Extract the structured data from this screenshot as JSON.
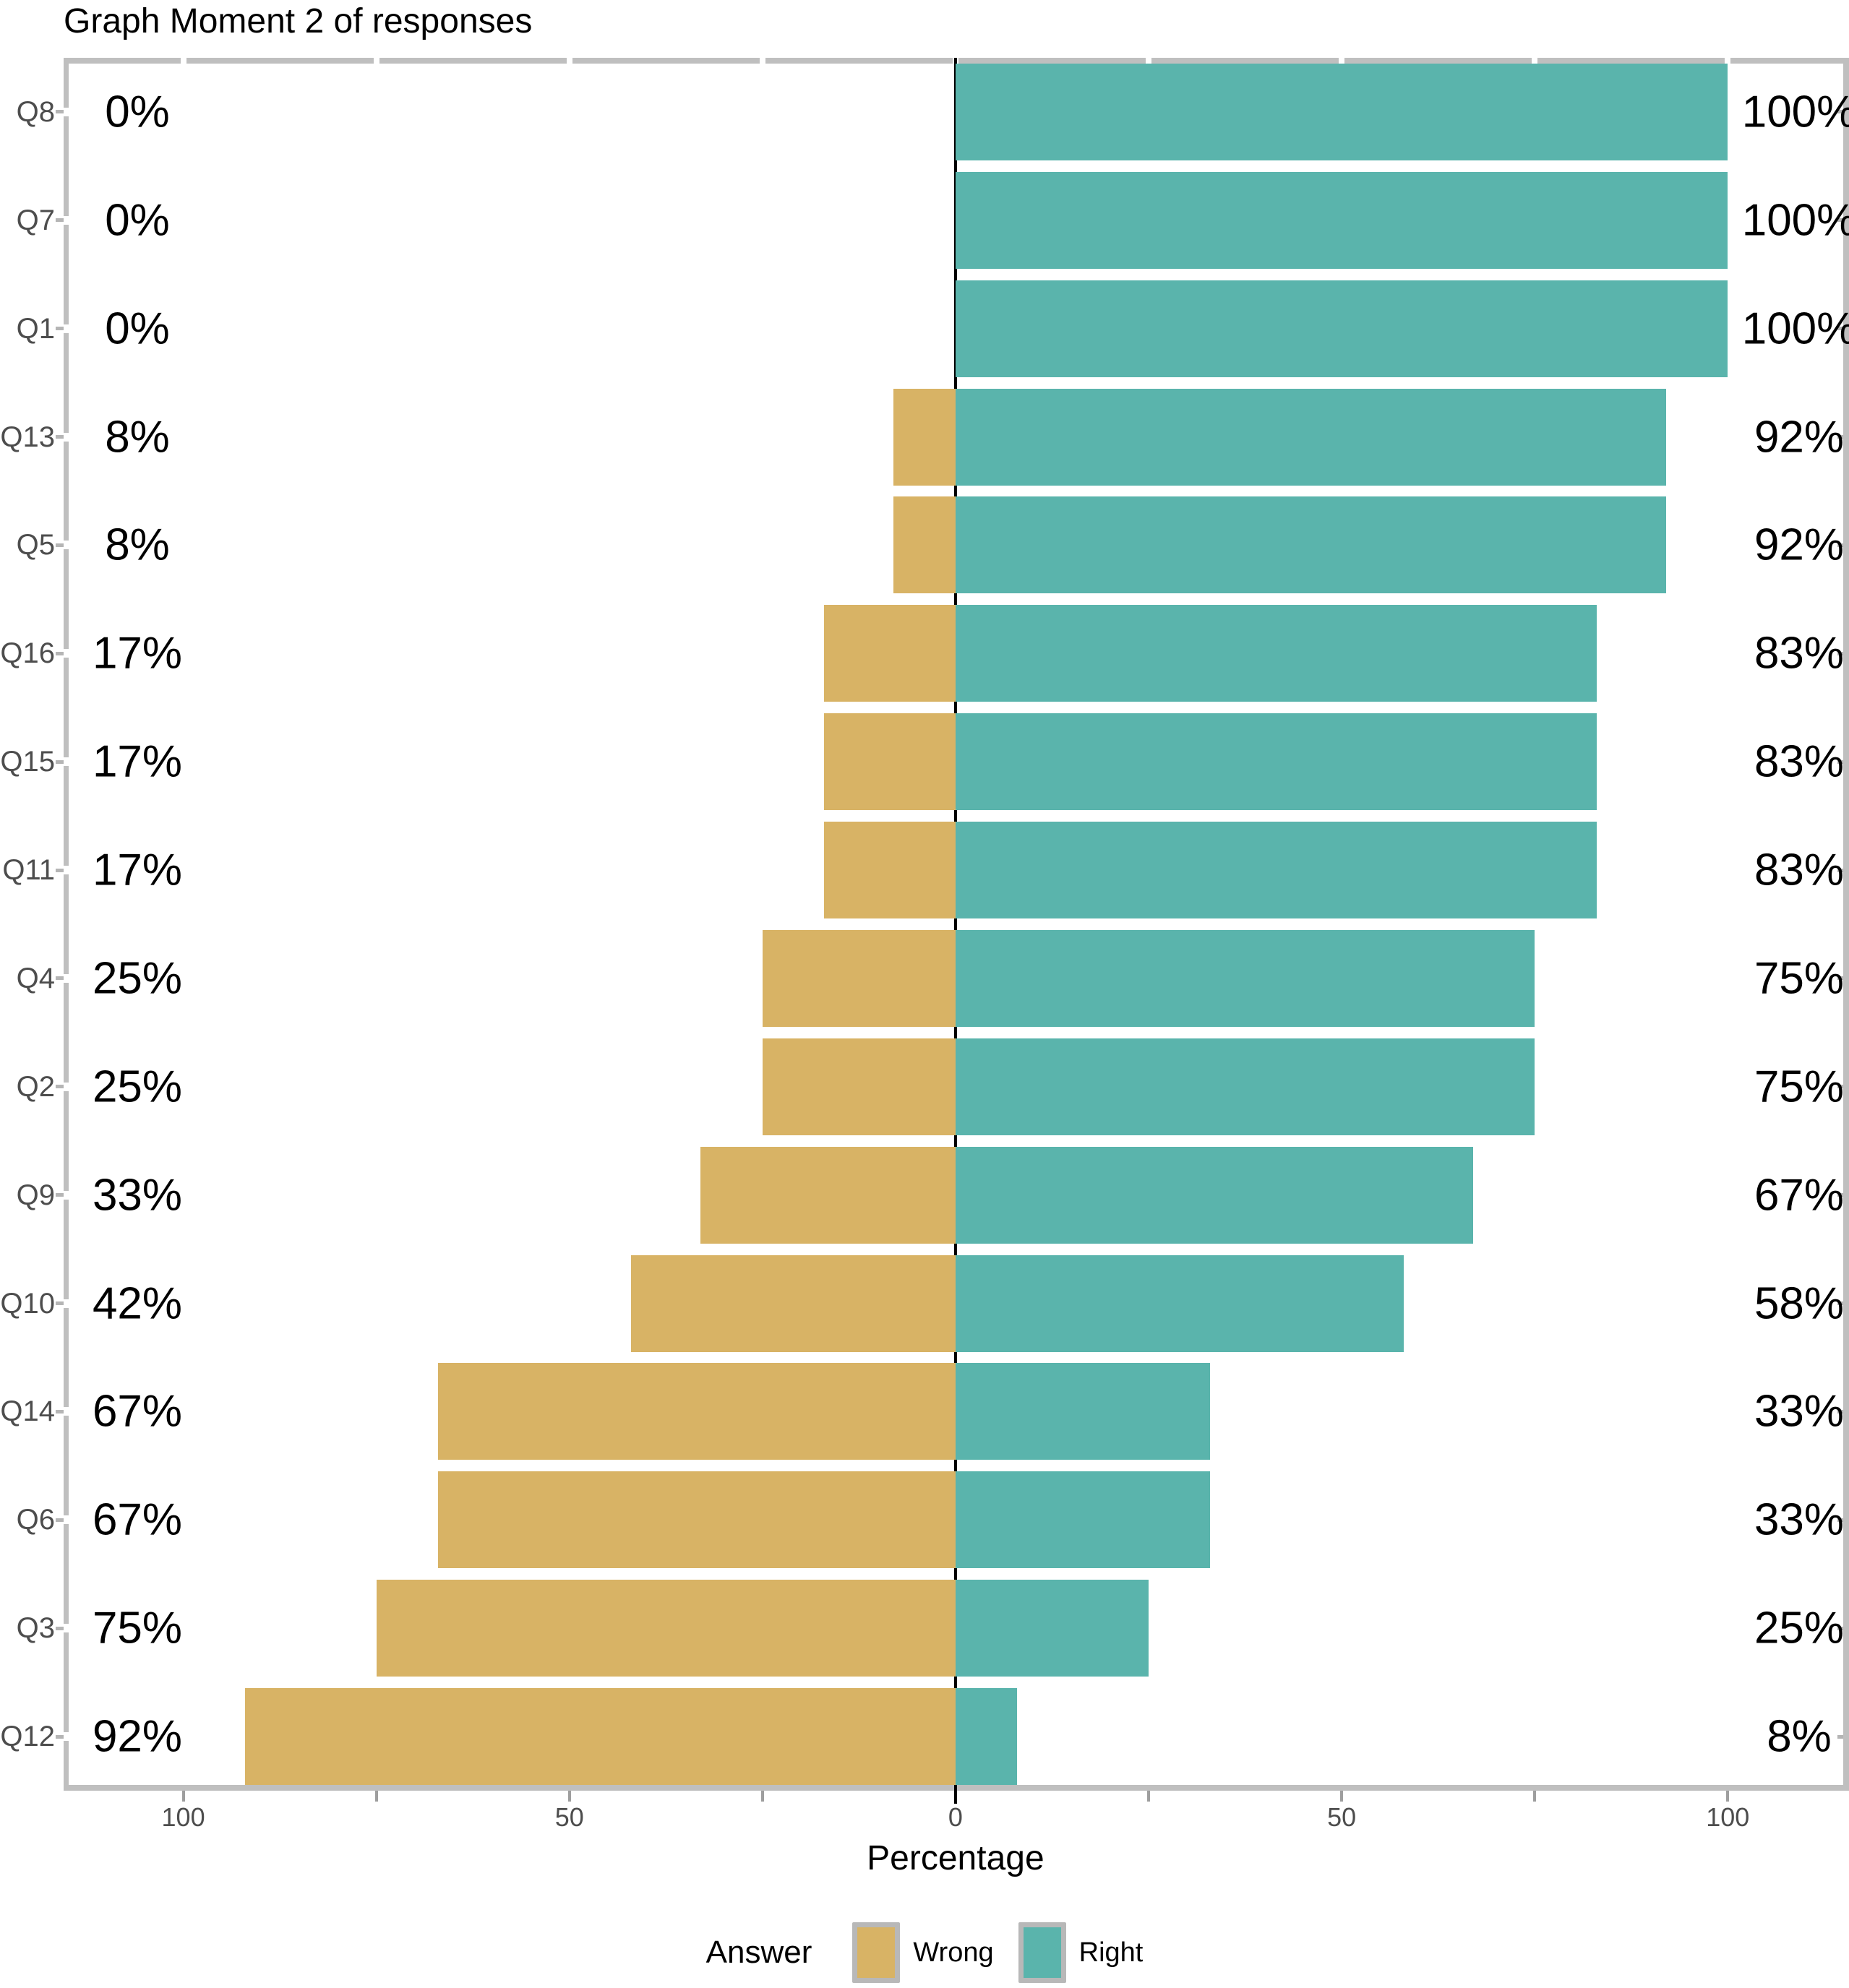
{
  "title": "Graph Moment 2 of responses",
  "axes": {
    "x_title": "Percentage",
    "x_tick_labels": [
      "100",
      "50",
      "0",
      "50",
      "100"
    ]
  },
  "legend": {
    "title": "Answer",
    "items": [
      {
        "label": "Wrong",
        "color": "#d8b365"
      },
      {
        "label": "Right",
        "color": "#5ab4ac"
      }
    ]
  },
  "chart_data": {
    "type": "bar",
    "variant": "horizontal-diverging",
    "title": "Graph Moment 2 of responses",
    "xlabel": "Percentage",
    "ylabel": "",
    "categories": [
      "Q8",
      "Q7",
      "Q1",
      "Q13",
      "Q5",
      "Q16",
      "Q15",
      "Q11",
      "Q4",
      "Q2",
      "Q9",
      "Q10",
      "Q14",
      "Q6",
      "Q3",
      "Q12"
    ],
    "series": [
      {
        "name": "Wrong",
        "side": "left",
        "color": "#d8b365",
        "values": [
          0,
          0,
          0,
          8,
          8,
          17,
          17,
          17,
          25,
          25,
          33,
          42,
          67,
          67,
          75,
          92
        ]
      },
      {
        "name": "Right",
        "side": "right",
        "color": "#5ab4ac",
        "values": [
          100,
          100,
          100,
          92,
          92,
          83,
          83,
          83,
          75,
          75,
          67,
          58,
          33,
          33,
          25,
          8
        ]
      }
    ],
    "bar_labels_left": [
      "0%",
      "0%",
      "0%",
      "8%",
      "8%",
      "17%",
      "17%",
      "17%",
      "25%",
      "25%",
      "33%",
      "42%",
      "67%",
      "67%",
      "75%",
      "92%"
    ],
    "bar_labels_right": [
      "100%",
      "100%",
      "100%",
      "92%",
      "92%",
      "83%",
      "83%",
      "83%",
      "75%",
      "75%",
      "67%",
      "58%",
      "33%",
      "33%",
      "25%",
      "8%"
    ],
    "x_tick_values": [
      -100,
      -50,
      0,
      50,
      100
    ],
    "x_minor_tick_values": [
      -100,
      -75,
      -50,
      -25,
      0,
      25,
      50,
      75,
      100
    ],
    "xlim": [
      -115.5,
      115.7
    ],
    "grid": false,
    "legend_position": "bottom",
    "zero_line_color": "#000000",
    "panel_border_color": "#bfbfbf",
    "axis_tick_color": "#9e9e9e",
    "axis_text_color": "#4d4d4d"
  }
}
